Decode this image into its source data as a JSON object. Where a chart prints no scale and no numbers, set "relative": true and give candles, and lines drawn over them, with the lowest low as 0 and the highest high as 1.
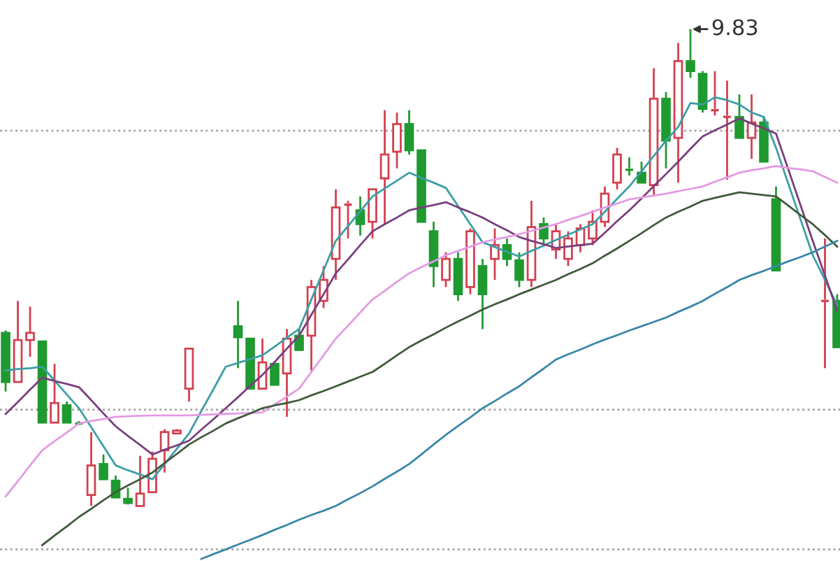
{
  "chart_data": {
    "type": "candlestick",
    "relative": true,
    "categories": [
      null,
      null,
      null,
      null,
      null,
      null,
      null,
      null,
      null,
      null,
      null,
      null,
      null,
      null,
      null,
      null,
      null,
      null,
      null,
      null,
      null,
      null,
      null,
      null,
      null,
      null,
      null,
      null,
      null,
      null,
      null,
      null,
      null,
      null,
      null,
      null,
      null,
      null,
      null,
      null,
      null,
      null,
      null,
      null,
      null,
      null,
      null,
      null,
      null,
      null,
      null,
      null,
      null,
      null,
      null,
      null,
      null,
      null,
      null,
      null,
      null,
      null,
      null,
      null,
      null,
      null,
      null,
      null,
      null
    ],
    "colors": [
      "#1f9a30",
      "#d2404f",
      "#d2404f",
      "#1f9a30",
      "#d2404f",
      "#1f9a30",
      "#1f9a30",
      "#d2404f",
      "#1f9a30",
      "#1f9a30",
      "#1f9a30",
      "#d2404f",
      "#d2404f",
      "#d2404f",
      "#d2404f",
      "#d2404f",
      null,
      null,
      null,
      "#1f9a30",
      "#1f9a30",
      "#d2404f",
      "#1f9a30",
      "#d2404f",
      "#1f9a30",
      "#d2404f",
      "#d2404f",
      "#d2404f",
      "#d2404f",
      "#1f9a30",
      "#d2404f",
      "#d2404f",
      "#d2404f",
      "#1f9a30",
      "#1f9a30",
      "#1f9a30",
      "#d2404f",
      "#1f9a30",
      "#d2404f",
      "#1f9a30",
      "#d2404f",
      "#1f9a30",
      "#1f9a30",
      "#d2404f",
      "#1f9a30",
      "#d2404f",
      "#d2404f",
      "#d2404f",
      "#d2404f",
      "#d2404f",
      "#d2404f",
      "#1f9a30",
      "#1f9a30",
      "#d2404f",
      "#1f9a30",
      "#d2404f",
      "#1f9a30",
      "#1f9a30",
      "#d2404f",
      "#d2404f",
      "#1f9a30",
      "#d2404f",
      "#1f9a30",
      "#1f9a30",
      null,
      null,
      null,
      "#d2404f",
      "#1f9a30"
    ],
    "ohlc": [
      [
        0.363,
        0.368,
        0.24,
        0.26
      ],
      [
        0.26,
        0.43,
        0.26,
        0.348
      ],
      [
        0.348,
        0.418,
        0.313,
        0.363
      ],
      [
        0.345,
        0.345,
        0.175,
        0.175
      ],
      [
        0.175,
        0.298,
        0.175,
        0.216
      ],
      [
        0.211,
        0.219,
        0.175,
        0.175
      ],
      [
        0.175,
        0.178,
        0.17,
        0.173
      ],
      [
        0.023,
        0.155,
        0,
        0.085
      ],
      [
        0.088,
        0.108,
        0.056,
        0.056
      ],
      [
        0.053,
        0.064,
        0.018,
        0.018
      ],
      [
        0.015,
        0.038,
        0.003,
        0.006
      ],
      [
        0,
        0.105,
        0,
        0.026
      ],
      [
        0.029,
        0.114,
        0.029,
        0.099
      ],
      [
        0.117,
        0.161,
        0.07,
        0.155
      ],
      [
        0.152,
        0.161,
        0.152,
        0.158
      ],
      [
        0.246,
        0.33,
        0.219,
        0.33
      ],
      null,
      null,
      null,
      [
        0.377,
        0.43,
        0.289,
        0.354
      ],
      [
        0.351,
        0.351,
        0.246,
        0.246
      ],
      [
        0.246,
        0.351,
        0.246,
        0.301
      ],
      [
        0.298,
        0.298,
        0.254,
        0.254
      ],
      [
        0.278,
        0.371,
        0.187,
        0.351
      ],
      [
        0.357,
        0.371,
        0.327,
        0.327
      ],
      [
        0.357,
        0.474,
        0.284,
        0.459
      ],
      [
        0.43,
        0.503,
        0.415,
        0.474
      ],
      [
        0.518,
        0.664,
        0.474,
        0.626
      ],
      [
        0.632,
        0.64,
        0.561,
        0.635
      ],
      [
        0.62,
        0.649,
        0.567,
        0.591
      ],
      [
        0.596,
        0.664,
        0.561,
        0.664
      ],
      [
        0.687,
        0.83,
        0.591,
        0.737
      ],
      [
        0.743,
        0.825,
        0.708,
        0.801
      ],
      [
        0.801,
        0.83,
        0.737,
        0.746
      ],
      [
        0.746,
        0.746,
        0.596,
        0.596
      ],
      [
        0.576,
        0.596,
        0.459,
        0.503
      ],
      [
        0.474,
        0.532,
        0.459,
        0.518
      ],
      [
        0.518,
        0.532,
        0.43,
        0.444
      ],
      [
        0.459,
        0.582,
        0.444,
        0.576
      ],
      [
        0.503,
        0.518,
        0.371,
        0.444
      ],
      [
        0.518,
        0.582,
        0.474,
        0.547
      ],
      [
        0.547,
        0.561,
        0.503,
        0.518
      ],
      [
        0.515,
        0.532,
        0.459,
        0.474
      ],
      [
        0.474,
        0.64,
        0.459,
        0.585
      ],
      [
        0.591,
        0.605,
        0.547,
        0.561
      ],
      [
        0.538,
        0.591,
        0.518,
        0.576
      ],
      [
        0.518,
        0.576,
        0.503,
        0.561
      ],
      [
        0.547,
        0.591,
        0.532,
        0.582
      ],
      [
        0.561,
        0.62,
        0.547,
        0.596
      ],
      [
        0.596,
        0.67,
        0.585,
        0.655
      ],
      [
        0.678,
        0.751,
        0.664,
        0.737
      ],
      [
        0.708,
        0.731,
        0.693,
        0.705
      ],
      [
        0.699,
        0.722,
        0.678,
        0.678
      ],
      [
        0.673,
        0.918,
        0.649,
        0.854
      ],
      [
        0.854,
        0.868,
        0.708,
        0.766
      ],
      [
        0.772,
        0.971,
        0.678,
        0.933
      ],
      [
        0.933,
        1.0,
        0.898,
        0.912
      ],
      [
        0.906,
        0.912,
        0.825,
        0.833
      ],
      [
        0.83,
        0.912,
        0.819,
        0.833
      ],
      [
        0.816,
        0.892,
        0.684,
        0.819
      ],
      [
        0.816,
        0.863,
        0.772,
        0.772
      ],
      [
        0.772,
        0.863,
        0.728,
        0.804
      ],
      [
        0.804,
        0.816,
        0.722,
        0.722
      ],
      [
        0.643,
        0.67,
        0.494,
        0.494
      ],
      null,
      null,
      null,
      [
        0.43,
        0.561,
        0.289,
        0.433
      ],
      [
        0.43,
        0.444,
        0.333,
        0.333
      ]
    ],
    "series": [
      {
        "type": "line",
        "color": "#3c9ea6",
        "values": [
          0.284,
          0.287,
          0.289,
          0.292,
          0.263,
          0.234,
          0.205,
          0.165,
          0.125,
          0.085,
          0.075,
          0.066,
          0.056,
          0.088,
          0.12,
          0.152,
          0.199,
          0.245,
          0.292,
          0.3,
          0.308,
          0.316,
          0.334,
          0.353,
          0.371,
          0.433,
          0.494,
          0.556,
          0.587,
          0.618,
          0.649,
          0.666,
          0.682,
          0.699,
          0.688,
          0.678,
          0.667,
          0.629,
          0.591,
          0.553,
          0.543,
          0.533,
          0.523,
          0.535,
          0.546,
          0.558,
          0.569,
          0.58,
          0.591,
          0.617,
          0.644,
          0.67,
          0.702,
          0.734,
          0.766,
          0.795,
          0.845,
          0.842,
          0.857,
          0.851,
          0.842,
          0.825,
          0.816,
          0.751,
          0.676,
          0.601,
          0.526,
          0.474,
          0.421
        ]
      },
      {
        "type": "line",
        "color": "#7a3e7e",
        "values": [
          0.193,
          0.218,
          0.244,
          0.269,
          0.262,
          0.256,
          0.249,
          0.222,
          0.194,
          0.167,
          0.147,
          0.128,
          0.108,
          0.118,
          0.127,
          0.137,
          0.16,
          0.182,
          0.205,
          0.228,
          0.252,
          0.275,
          0.302,
          0.33,
          0.357,
          0.401,
          0.444,
          0.488,
          0.517,
          0.547,
          0.576,
          0.591,
          0.605,
          0.62,
          0.626,
          0.631,
          0.637,
          0.626,
          0.616,
          0.605,
          0.591,
          0.578,
          0.564,
          0.556,
          0.549,
          0.541,
          0.544,
          0.547,
          0.55,
          0.573,
          0.597,
          0.62,
          0.645,
          0.671,
          0.696,
          0.722,
          0.749,
          0.775,
          0.788,
          0.8,
          0.813,
          0.802,
          0.792,
          0.781,
          0.706,
          0.631,
          0.556,
          0.483,
          0.409
        ]
      },
      {
        "type": "line",
        "color": "#e39be3",
        "values": [
          0.02,
          0.052,
          0.085,
          0.117,
          0.136,
          0.154,
          0.173,
          0.178,
          0.182,
          0.187,
          0.188,
          0.189,
          0.19,
          0.19,
          0.19,
          0.19,
          0.191,
          0.192,
          0.193,
          0.194,
          0.195,
          0.196,
          0.213,
          0.229,
          0.246,
          0.281,
          0.316,
          0.351,
          0.378,
          0.406,
          0.433,
          0.451,
          0.47,
          0.488,
          0.501,
          0.513,
          0.526,
          0.535,
          0.544,
          0.553,
          0.559,
          0.564,
          0.57,
          0.577,
          0.584,
          0.591,
          0.6,
          0.608,
          0.617,
          0.626,
          0.634,
          0.643,
          0.647,
          0.651,
          0.655,
          0.66,
          0.665,
          0.67,
          0.68,
          0.689,
          0.699,
          0.704,
          0.708,
          0.713,
          0.709,
          0.706,
          0.702,
          0.69,
          0.678
        ]
      },
      {
        "type": "line",
        "color": "#3f5a3a",
        "values": [
          null,
          null,
          null,
          -0.082,
          -0.062,
          -0.043,
          -0.023,
          -0.006,
          0.012,
          0.029,
          0.043,
          0.056,
          0.07,
          0.09,
          0.109,
          0.129,
          0.144,
          0.158,
          0.173,
          0.184,
          0.194,
          0.205,
          0.211,
          0.216,
          0.222,
          0.232,
          0.241,
          0.251,
          0.261,
          0.271,
          0.281,
          0.298,
          0.316,
          0.333,
          0.347,
          0.36,
          0.374,
          0.387,
          0.399,
          0.412,
          0.423,
          0.433,
          0.444,
          0.454,
          0.464,
          0.474,
          0.486,
          0.497,
          0.509,
          0.525,
          0.54,
          0.556,
          0.572,
          0.589,
          0.605,
          0.617,
          0.628,
          0.64,
          0.646,
          0.652,
          0.658,
          0.655,
          0.652,
          0.649,
          0.63,
          0.61,
          0.591,
          0.568,
          0.544
        ]
      },
      {
        "type": "line",
        "color": "#3a86a8",
        "values": [
          null,
          null,
          null,
          null,
          null,
          null,
          null,
          null,
          null,
          null,
          null,
          null,
          null,
          null,
          null,
          null,
          -0.111,
          -0.101,
          -0.091,
          -0.081,
          -0.071,
          -0.061,
          -0.05,
          -0.04,
          -0.029,
          -0.019,
          -0.01,
          0,
          0.014,
          0.027,
          0.041,
          0.057,
          0.072,
          0.088,
          0.108,
          0.129,
          0.149,
          0.168,
          0.186,
          0.205,
          0.22,
          0.236,
          0.251,
          0.27,
          0.288,
          0.307,
          0.318,
          0.328,
          0.339,
          0.349,
          0.358,
          0.368,
          0.377,
          0.386,
          0.395,
          0.407,
          0.418,
          0.43,
          0.445,
          0.459,
          0.474,
          0.484,
          0.493,
          0.503,
          0.513,
          0.522,
          0.532,
          0.544,
          0.556
        ]
      }
    ],
    "ref_lines": [
      {
        "axis": "y",
        "value": 0.787,
        "color": "#a0a0a0",
        "line_style": "dotted"
      },
      {
        "axis": "y",
        "value": 0.202,
        "color": "#a0a0a0",
        "line_style": "dotted"
      },
      {
        "axis": "y",
        "value": -0.091,
        "color": "#a0a0a0",
        "line_style": "dotted"
      }
    ],
    "annotations": [
      "9.83"
    ]
  }
}
